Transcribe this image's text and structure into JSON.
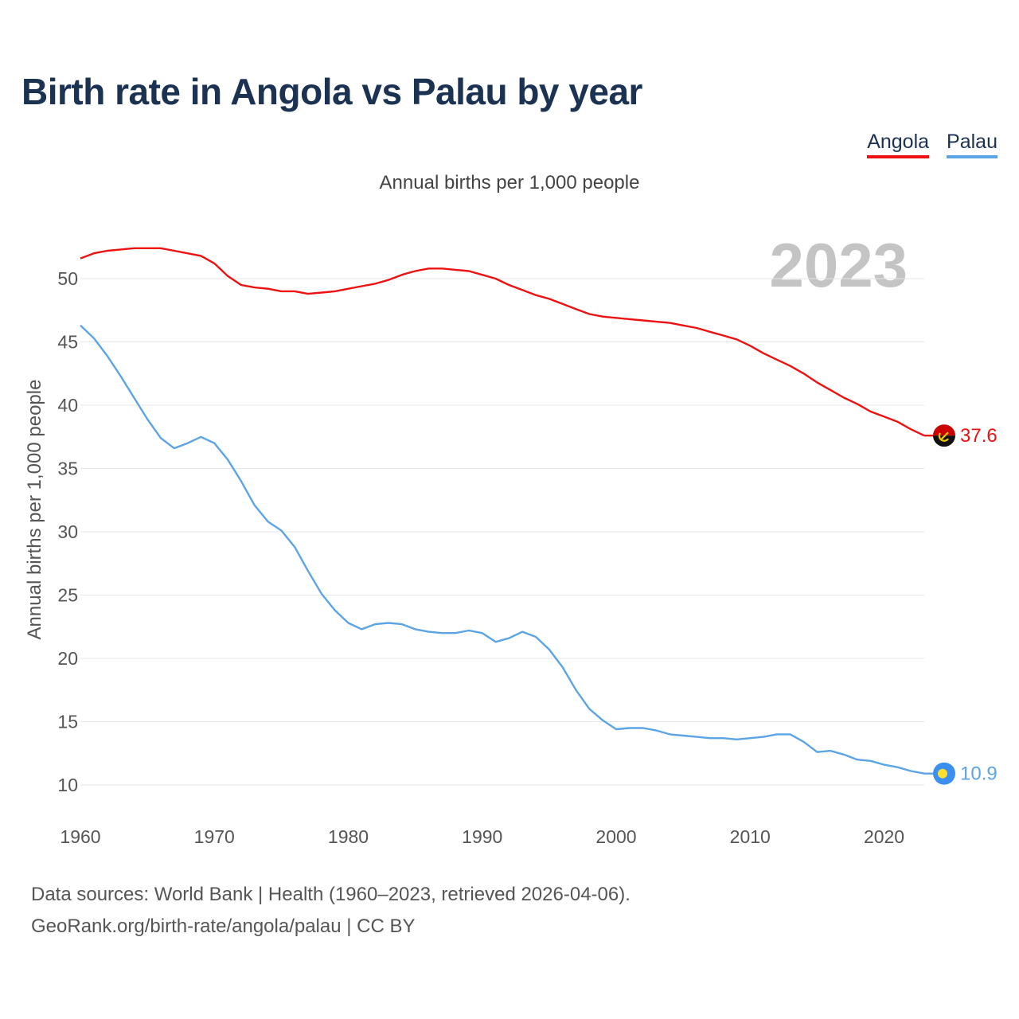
{
  "title": "Birth rate in Angola vs Palau by year",
  "subtitle": "Annual births per 1,000 people",
  "year_watermark": "2023",
  "legend": [
    "Angola",
    "Palau"
  ],
  "footer": {
    "line1": "Data sources: World Bank | Health (1960–2023, retrieved 2026-04-06).",
    "line2": "GeoRank.org/birth-rate/angola/palau | CC BY"
  },
  "chart_data": {
    "type": "line",
    "title": "Birth rate in Angola vs Palau by year",
    "xlabel": "",
    "ylabel": "Annual births per 1,000 people",
    "xlim": [
      1960,
      2023
    ],
    "ylim": [
      10,
      52
    ],
    "x_ticks": [
      1960,
      1970,
      1980,
      1990,
      2000,
      2010,
      2020
    ],
    "y_ticks": [
      10,
      15,
      20,
      25,
      30,
      35,
      40,
      45,
      50
    ],
    "grid": true,
    "legend_position": "top-right",
    "x": [
      1960,
      1961,
      1962,
      1963,
      1964,
      1965,
      1966,
      1967,
      1968,
      1969,
      1970,
      1971,
      1972,
      1973,
      1974,
      1975,
      1976,
      1977,
      1978,
      1979,
      1980,
      1981,
      1982,
      1983,
      1984,
      1985,
      1986,
      1987,
      1988,
      1989,
      1990,
      1991,
      1992,
      1993,
      1994,
      1995,
      1996,
      1997,
      1998,
      1999,
      2000,
      2001,
      2002,
      2003,
      2004,
      2005,
      2006,
      2007,
      2008,
      2009,
      2010,
      2011,
      2012,
      2013,
      2014,
      2015,
      2016,
      2017,
      2018,
      2019,
      2020,
      2021,
      2022,
      2023
    ],
    "series": [
      {
        "name": "Angola",
        "color": "#ee1111",
        "end_label": "37.6",
        "values": [
          51.6,
          52.0,
          52.2,
          52.3,
          52.4,
          52.4,
          52.4,
          52.2,
          52.0,
          51.8,
          51.2,
          50.2,
          49.5,
          49.3,
          49.2,
          49.0,
          49.0,
          48.8,
          48.9,
          49.0,
          49.2,
          49.4,
          49.6,
          49.9,
          50.3,
          50.6,
          50.8,
          50.8,
          50.7,
          50.6,
          50.3,
          50.0,
          49.5,
          49.1,
          48.7,
          48.4,
          48.0,
          47.6,
          47.2,
          47.0,
          46.9,
          46.8,
          46.7,
          46.6,
          46.5,
          46.3,
          46.1,
          45.8,
          45.5,
          45.2,
          44.7,
          44.1,
          43.6,
          43.1,
          42.5,
          41.8,
          41.2,
          40.6,
          40.1,
          39.5,
          39.1,
          38.7,
          38.1,
          37.6
        ]
      },
      {
        "name": "Palau",
        "color": "#5ba4e6",
        "end_label": "10.9",
        "values": [
          46.3,
          45.3,
          43.9,
          42.3,
          40.6,
          38.9,
          37.4,
          36.6,
          37.0,
          37.5,
          37.0,
          35.7,
          34.0,
          32.1,
          30.8,
          30.1,
          28.8,
          26.9,
          25.1,
          23.8,
          22.8,
          22.3,
          22.7,
          22.8,
          22.7,
          22.3,
          22.1,
          22.0,
          22.0,
          22.2,
          22.0,
          21.3,
          21.6,
          22.1,
          21.7,
          20.7,
          19.3,
          17.5,
          16.0,
          15.1,
          14.4,
          14.5,
          14.5,
          14.3,
          14.0,
          13.9,
          13.8,
          13.7,
          13.7,
          13.6,
          13.7,
          13.8,
          14.0,
          14.0,
          13.4,
          12.6,
          12.7,
          12.4,
          12.0,
          11.9,
          11.6,
          11.4,
          11.1,
          10.9
        ]
      }
    ]
  }
}
